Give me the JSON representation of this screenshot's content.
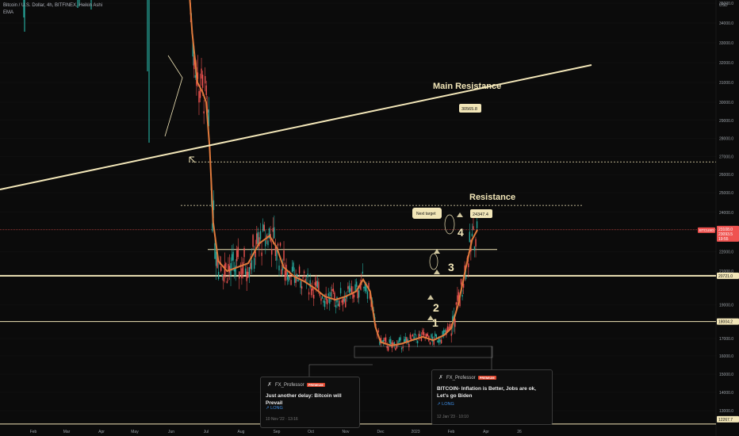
{
  "header": {
    "symbol_line": "Bitcoin / U.S. Dollar, 4h, BITFINEX, Heikin Ashi",
    "indicator": "EMA"
  },
  "colors": {
    "background": "#0b0b0b",
    "candle_up": "#26a69a",
    "candle_down": "#ef5350",
    "ema": "#e07a3c",
    "lines": "#f2e6b8"
  },
  "chart_data": {
    "type": "candlestick",
    "y_axis": {
      "unit": "USD",
      "range": [
        12267.7,
        35000
      ],
      "ticks": [
        "35000.0",
        "34000.0",
        "33000.0",
        "32000.0",
        "31000.0",
        "30000.0",
        "29000.0",
        "28000.0",
        "27000.0",
        "26000.0",
        "25000.0",
        "24000.0",
        "22000.0",
        "21000.0",
        "19000.0",
        "17000.0",
        "16000.0",
        "15000.0",
        "14000.0",
        "13000.0"
      ],
      "tick_values": [
        35000,
        34000,
        33000,
        32000,
        31000,
        30000,
        29000,
        28000,
        27000,
        26000,
        25000,
        24000,
        22000,
        21000,
        19000,
        17000,
        16000,
        15000,
        14000,
        13000
      ]
    },
    "x_axis": {
      "ticks": [
        "Feb",
        "Mar",
        "Apr",
        "May",
        "Jun",
        "Jul",
        "Aug",
        "Sep",
        "Oct",
        "Nov",
        "Dec",
        "2023",
        "Feb",
        "Apr",
        "26"
      ]
    },
    "price_labels": {
      "current": "23108.0",
      "current2": "23093.5",
      "countdown": "19:55",
      "symbol": "BTCUSD",
      "level_20721": "20721.0",
      "level_18004": "18004.2",
      "level_12267": "12267.7"
    },
    "ema_values": [
      [
        5.5,
        36000
      ],
      [
        5.6,
        33500
      ],
      [
        5.75,
        31000
      ],
      [
        5.9,
        30500
      ],
      [
        6.0,
        30000
      ],
      [
        6.1,
        27500
      ],
      [
        6.2,
        23500
      ],
      [
        6.35,
        21500
      ],
      [
        6.6,
        21000
      ],
      [
        6.9,
        21200
      ],
      [
        7.2,
        21400
      ],
      [
        7.5,
        22400
      ],
      [
        7.8,
        22800
      ],
      [
        8.0,
        22200
      ],
      [
        8.2,
        21200
      ],
      [
        8.5,
        20700
      ],
      [
        8.8,
        20400
      ],
      [
        9.1,
        20000
      ],
      [
        9.4,
        19500
      ],
      [
        9.7,
        19300
      ],
      [
        10.0,
        19500
      ],
      [
        10.3,
        19800
      ],
      [
        10.5,
        20500
      ],
      [
        10.7,
        19800
      ],
      [
        10.85,
        17700
      ],
      [
        11.0,
        16800
      ],
      [
        11.3,
        16600
      ],
      [
        11.6,
        16700
      ],
      [
        11.9,
        16900
      ],
      [
        12.2,
        17100
      ],
      [
        12.5,
        16900
      ],
      [
        12.8,
        17200
      ],
      [
        13.0,
        17600
      ],
      [
        13.2,
        19000
      ],
      [
        13.4,
        21000
      ],
      [
        13.6,
        22600
      ],
      [
        13.75,
        23100
      ]
    ],
    "annotations": {
      "main_resistance": "Main Resistance",
      "main_resistance_value": "30565.8",
      "resistance": "Resistance",
      "resistance_value": "24347.4",
      "next_target": "Next target",
      "wave_labels": [
        "1",
        "2",
        "3",
        "4"
      ]
    }
  },
  "ideas": [
    {
      "author": "FX_Professor",
      "badge": "PREMIUM",
      "title": "Just another delay: Bitcoin will Prevail",
      "direction": "LONG",
      "date": "10 Nov '22 · 13:16"
    },
    {
      "author": "FX_Professor",
      "badge": "PREMIUM",
      "title": "BITCOIN- Inflation is Better, Jobs are ok, Let's go Biden",
      "direction": "LONG",
      "date": "12 Jan '23 · 10:10"
    }
  ]
}
